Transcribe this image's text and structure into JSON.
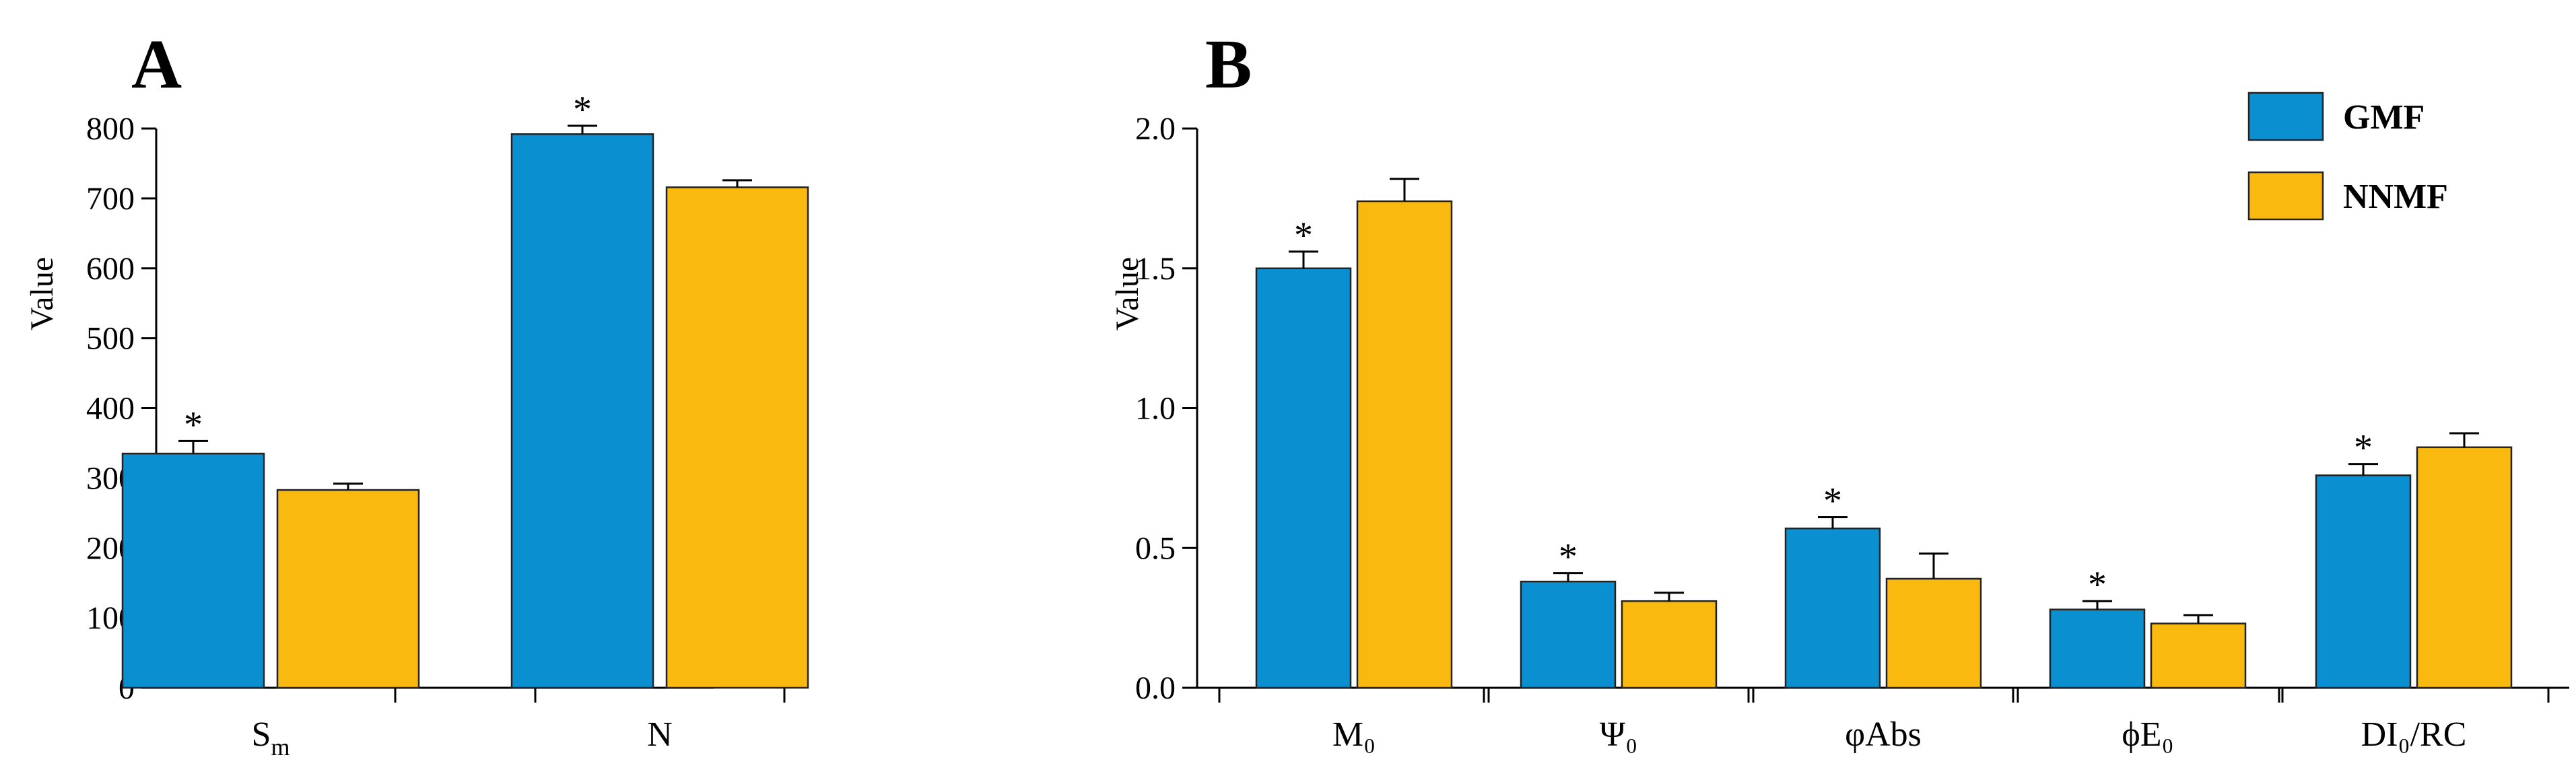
{
  "panels": {
    "a": {
      "letter": "A"
    },
    "b": {
      "letter": "B"
    }
  },
  "legend": {
    "items": [
      {
        "label": "GMF",
        "color": "#0a90d0"
      },
      {
        "label": "NNMF",
        "color": "#f9b90f"
      }
    ]
  },
  "chart_data": [
    {
      "type": "bar",
      "panel": "A",
      "ylabel": "Value",
      "xlabel": "",
      "ylim": [
        0,
        800
      ],
      "yticks": [
        "0",
        "100",
        "200",
        "300",
        "400",
        "500",
        "600",
        "700",
        "800"
      ],
      "categories": [
        "Sm",
        "N"
      ],
      "series": [
        {
          "name": "GMF",
          "color": "#0a90d0",
          "values": [
            335,
            792
          ],
          "errors": [
            18,
            12
          ],
          "significance": [
            "*",
            "*"
          ]
        },
        {
          "name": "NNMF",
          "color": "#f9b90f",
          "values": [
            283,
            716
          ],
          "errors": [
            9,
            10
          ],
          "significance": [
            "",
            ""
          ]
        }
      ],
      "grid": false
    },
    {
      "type": "bar",
      "panel": "B",
      "ylabel": "Value",
      "xlabel": "",
      "ylim": [
        0,
        2.0
      ],
      "yticks": [
        "0.0",
        "0.5",
        "1.0",
        "1.5",
        "2.0"
      ],
      "categories": [
        "M₀",
        "Ψ₀",
        "φAbs",
        "ϕE₀",
        "DI₀/RC"
      ],
      "series": [
        {
          "name": "GMF",
          "color": "#0a90d0",
          "values": [
            1.5,
            0.38,
            0.57,
            0.28,
            0.76
          ],
          "errors": [
            0.06,
            0.03,
            0.04,
            0.03,
            0.04
          ],
          "significance": [
            "*",
            "*",
            "*",
            "*",
            "*"
          ]
        },
        {
          "name": "NNMF",
          "color": "#f9b90f",
          "values": [
            1.74,
            0.31,
            0.39,
            0.23,
            0.86
          ],
          "errors": [
            0.08,
            0.03,
            0.09,
            0.03,
            0.05
          ],
          "significance": [
            "",
            "",
            "",
            "",
            ""
          ]
        }
      ],
      "grid": false,
      "legend_position": "top-right"
    }
  ]
}
